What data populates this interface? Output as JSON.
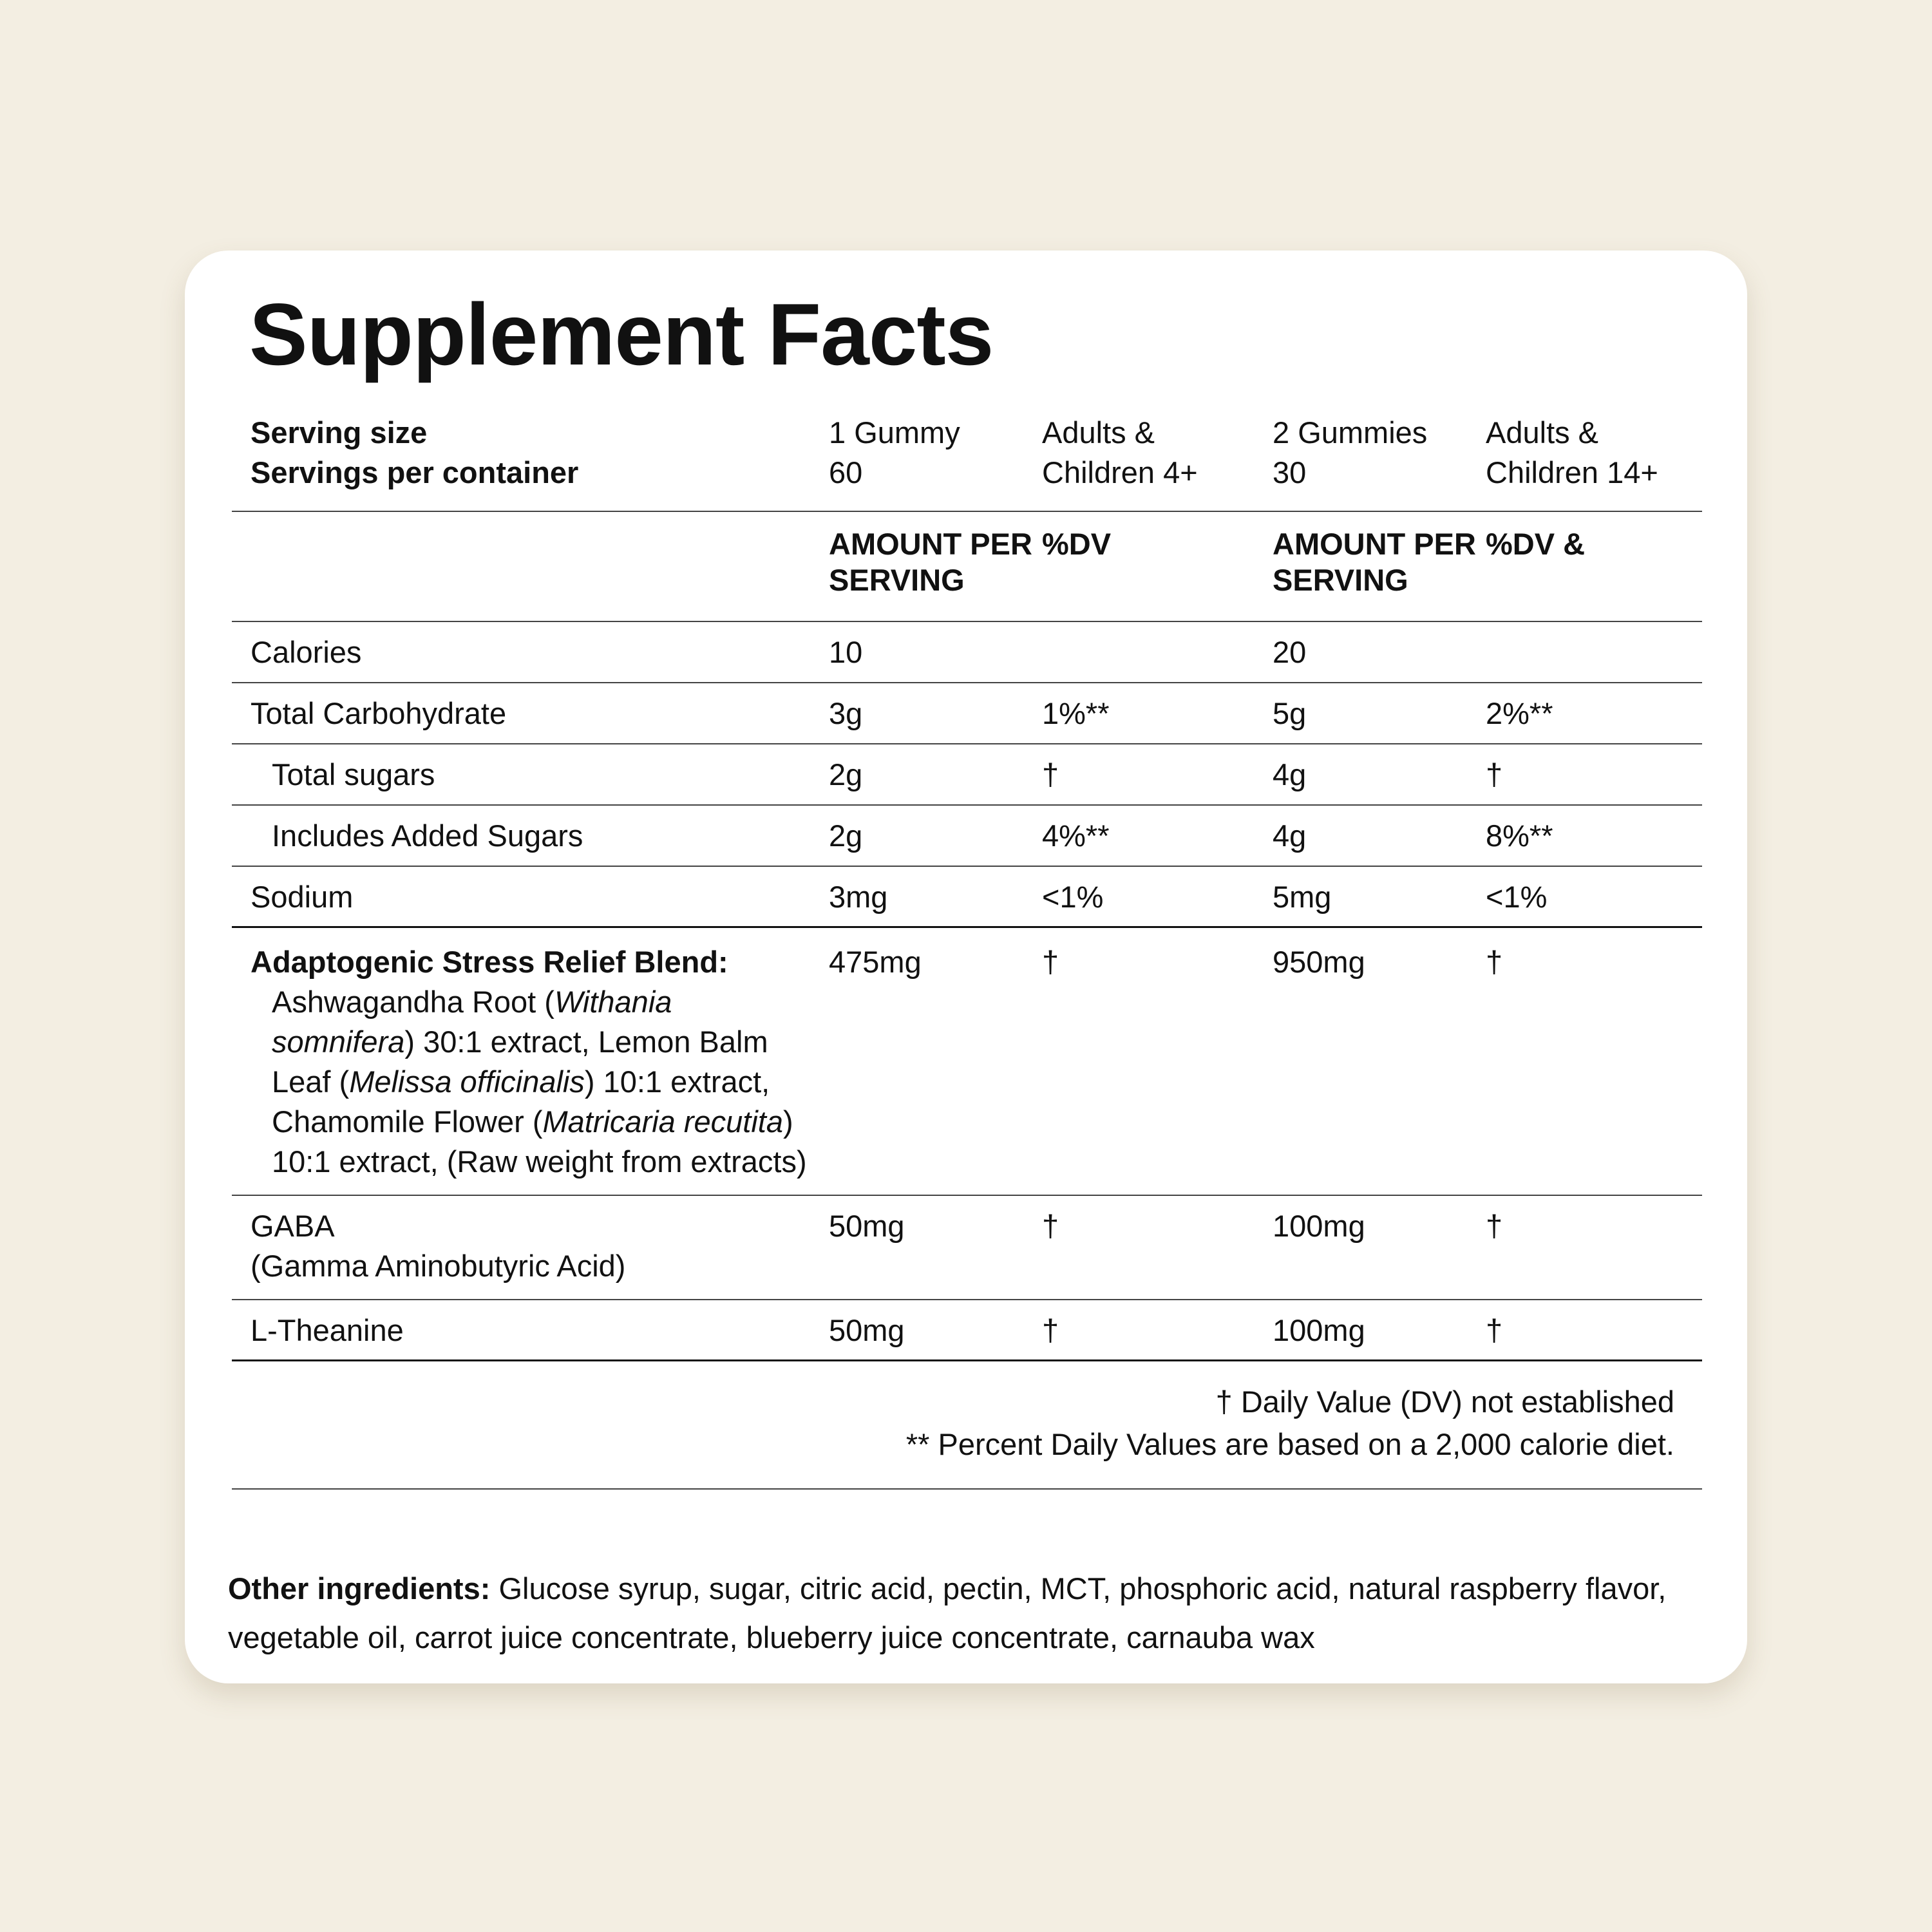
{
  "title": "Supplement Facts",
  "serving_header": {
    "label_lines": [
      "Serving size",
      "Servings per container"
    ],
    "cells": [
      [
        "1 Gummy",
        "60"
      ],
      [
        "Adults &",
        "Children 4+"
      ],
      [
        "2 Gummies",
        "30"
      ],
      [
        "Adults &",
        "Children 14+"
      ]
    ]
  },
  "column_headers": [
    "AMOUNT PER SERVING",
    "%DV",
    "AMOUNT PER SERVING",
    "%DV &"
  ],
  "rows": [
    {
      "name": "Calories",
      "values": [
        "10",
        null,
        "20",
        null
      ]
    },
    {
      "name": "Total Carbohydrate",
      "values": [
        "3g",
        "1%**",
        "5g",
        "2%**"
      ]
    },
    {
      "name": "Total sugars",
      "indent": true,
      "values": [
        "2g",
        "†",
        "4g",
        "†"
      ]
    },
    {
      "name": "Includes Added Sugars",
      "indent": true,
      "values": [
        "2g",
        "4%**",
        "4g",
        "8%**"
      ]
    },
    {
      "name": "Sodium",
      "values": [
        "3mg",
        "<1%",
        "5mg",
        "<1%"
      ],
      "rule": "thick"
    },
    {
      "name": "Adaptogenic Stress Relief Blend:",
      "bold": true,
      "values": [
        "475mg",
        "†",
        "950mg",
        "†"
      ],
      "description": [
        {
          "text": "Ashwagandha Root ("
        },
        {
          "text": "Withania somnifera",
          "italic": true
        },
        {
          "text": ") 30:1 extract, Lemon Balm Leaf ("
        },
        {
          "text": "Melissa officinalis",
          "italic": true
        },
        {
          "text": ") 10:1 extract, Chamomile Flower ("
        },
        {
          "text": "Matricaria recutita",
          "italic": true
        },
        {
          "text": ") 10:1 extract, (Raw weight from extracts)"
        }
      ]
    },
    {
      "name": "GABA",
      "sub": "(Gamma Aminobutyric Acid)",
      "values": [
        "50mg",
        "†",
        "100mg",
        "†"
      ]
    },
    {
      "name": "L-Theanine",
      "values": [
        "50mg",
        "†",
        "100mg",
        "†"
      ],
      "rule": "thick"
    }
  ],
  "footnotes": [
    "† Daily Value (DV) not established",
    "** Percent Daily Values are based on a 2,000 calorie diet."
  ],
  "other_ingredients": {
    "label": "Other ingredients:",
    "text": "Glucose syrup, sugar, citric acid, pectin, MCT, phosphoric acid, natural raspberry flavor, vegetable oil, carrot juice concentrate, blueberry juice concentrate, carnauba wax"
  }
}
